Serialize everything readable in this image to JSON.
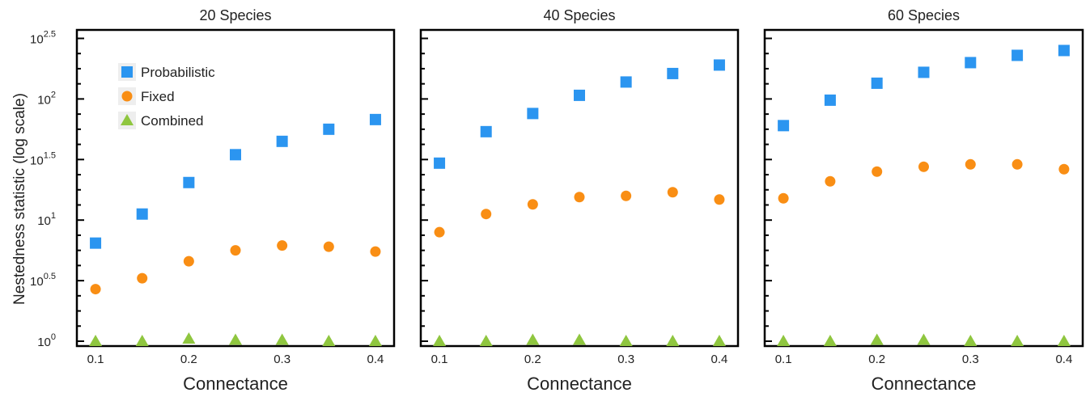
{
  "colors": {
    "Probabilistic": "#2b95f0",
    "Fixed": "#f98e14",
    "Combined": "#8fc63f"
  },
  "chart_data": {
    "type": "scatter",
    "ylabel": "Nestedness statistic (log scale)",
    "xlabel": "Connectance",
    "yscale": "log10",
    "ylim_log10": [
      -0.04,
      2.57
    ],
    "y_ticks_log10": [
      0,
      0.5,
      1,
      1.5,
      2,
      2.5
    ],
    "y_tick_labels": [
      {
        "base": "10",
        "exp": "0"
      },
      {
        "base": "10",
        "exp": "0.5"
      },
      {
        "base": "10",
        "exp": "1"
      },
      {
        "base": "10",
        "exp": "1.5"
      },
      {
        "base": "10",
        "exp": "2"
      },
      {
        "base": "10",
        "exp": "2.5"
      }
    ],
    "xlim": [
      0.08,
      0.42
    ],
    "x_ticks": [
      "0.1",
      "0.2",
      "0.3",
      "0.4"
    ],
    "x": [
      0.1,
      0.15,
      0.2,
      0.25,
      0.3,
      0.35,
      0.4
    ],
    "legend": {
      "placement": "top-left of first panel",
      "entries": [
        {
          "series": "Probabilistic",
          "label": "Probabilistic",
          "marker": "square"
        },
        {
          "series": "Fixed",
          "label": "Fixed",
          "marker": "circle"
        },
        {
          "series": "Combined",
          "label": "Combined",
          "marker": "triangle"
        }
      ]
    },
    "panels": [
      {
        "title": "20 Species",
        "series": [
          {
            "name": "Probabilistic",
            "marker": "square",
            "values_log10": [
              0.81,
              1.05,
              1.31,
              1.54,
              1.65,
              1.75,
              1.83
            ]
          },
          {
            "name": "Fixed",
            "marker": "circle",
            "values_log10": [
              0.43,
              0.52,
              0.66,
              0.75,
              0.79,
              0.78,
              0.74
            ]
          },
          {
            "name": "Combined",
            "marker": "triangle",
            "values_log10": [
              0.0,
              0.0,
              0.02,
              0.01,
              0.01,
              0.0,
              0.0
            ]
          }
        ]
      },
      {
        "title": "40 Species",
        "series": [
          {
            "name": "Probabilistic",
            "marker": "square",
            "values_log10": [
              1.47,
              1.73,
              1.88,
              2.03,
              2.14,
              2.21,
              2.28
            ]
          },
          {
            "name": "Fixed",
            "marker": "circle",
            "values_log10": [
              0.9,
              1.05,
              1.13,
              1.19,
              1.2,
              1.23,
              1.17
            ]
          },
          {
            "name": "Combined",
            "marker": "triangle",
            "values_log10": [
              0.0,
              0.0,
              0.01,
              0.01,
              0.0,
              0.0,
              0.0
            ]
          }
        ]
      },
      {
        "title": "60 Species",
        "series": [
          {
            "name": "Probabilistic",
            "marker": "square",
            "values_log10": [
              1.78,
              1.99,
              2.13,
              2.22,
              2.3,
              2.36,
              2.4
            ]
          },
          {
            "name": "Fixed",
            "marker": "circle",
            "values_log10": [
              1.18,
              1.32,
              1.4,
              1.44,
              1.46,
              1.46,
              1.42
            ]
          },
          {
            "name": "Combined",
            "marker": "triangle",
            "values_log10": [
              0.0,
              0.0,
              0.01,
              0.01,
              0.0,
              0.0,
              0.0
            ]
          }
        ]
      }
    ]
  }
}
